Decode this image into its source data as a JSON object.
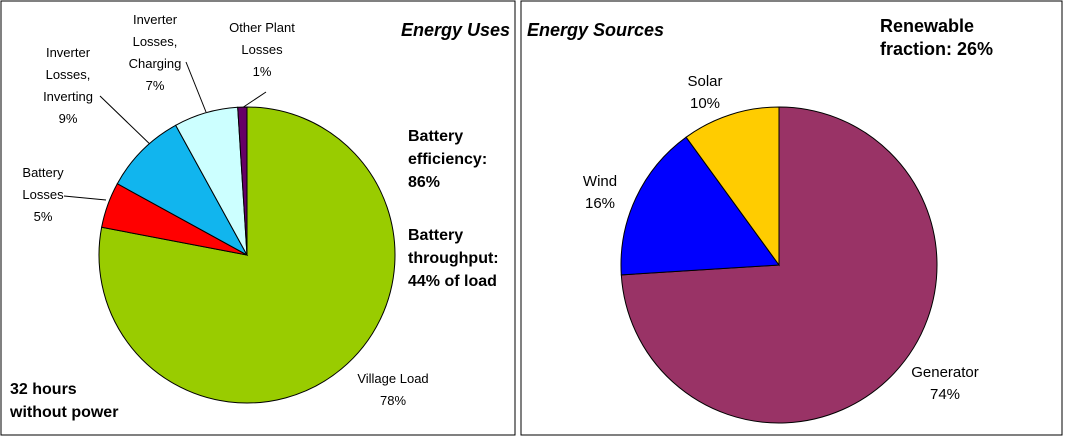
{
  "chart_data": [
    {
      "type": "pie",
      "title": "Energy Uses",
      "categories": [
        "Village Load",
        "Battery Losses",
        "Inverter Losses, Inverting",
        "Inverter Losses, Charging",
        "Other Plant Losses"
      ],
      "values": [
        78,
        5,
        9,
        7,
        1
      ],
      "value_labels": [
        "78%",
        "5%",
        "9%",
        "7%",
        "1%"
      ],
      "colors": [
        "#99cc00",
        "#ff0000",
        "#11b5ee",
        "#ccffff",
        "#660066"
      ],
      "annotations": [
        "Battery efficiency: 86%",
        "Battery throughput: 44% of load",
        "32 hours without power"
      ]
    },
    {
      "type": "pie",
      "title": "Energy Sources",
      "categories": [
        "Generator",
        "Wind",
        "Solar"
      ],
      "values": [
        74,
        16,
        10
      ],
      "value_labels": [
        "74%",
        "16%",
        "10%"
      ],
      "colors": [
        "#993366",
        "#0000ff",
        "#ffcc00"
      ],
      "annotations": [
        "Renewable fraction: 26%"
      ]
    }
  ]
}
